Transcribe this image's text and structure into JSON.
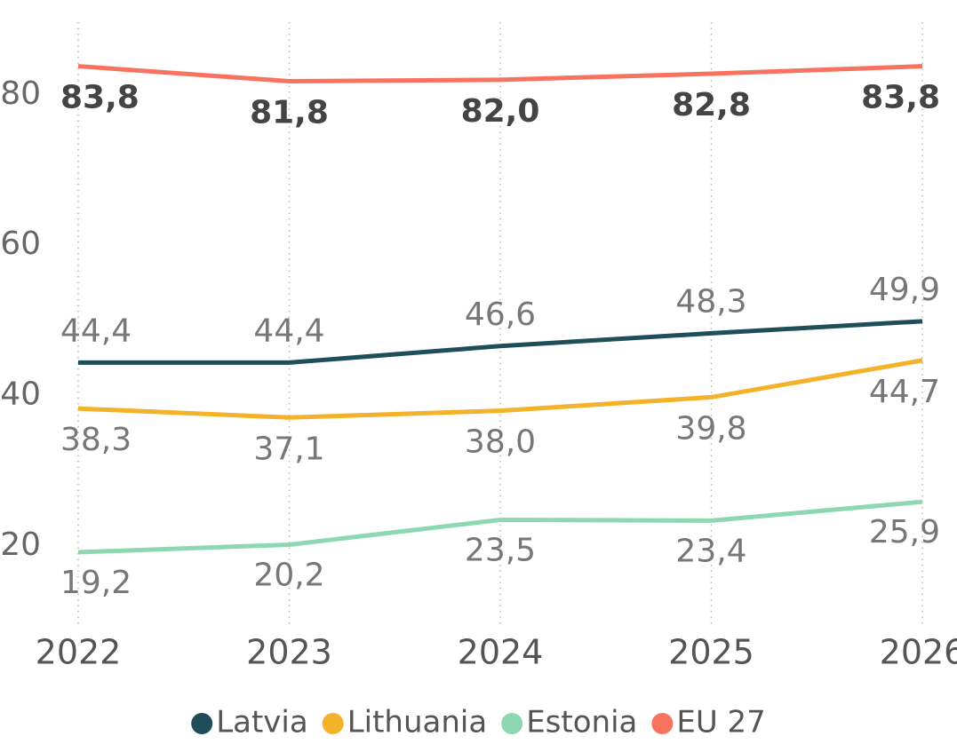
{
  "chart_data": {
    "type": "line",
    "categories": [
      "2022",
      "2023",
      "2024",
      "2025",
      "2026"
    ],
    "series": [
      {
        "name": "Latvia",
        "color": "#1f4e5a",
        "values": [
          44.4,
          44.4,
          46.6,
          48.3,
          49.9
        ],
        "value_labels": [
          "44,4",
          "44,4",
          "46,6",
          "48,3",
          "49,9"
        ]
      },
      {
        "name": "Lithuania",
        "color": "#f4b12a",
        "values": [
          38.3,
          37.1,
          38.0,
          39.8,
          44.7
        ],
        "value_labels": [
          "38,3",
          "37,1",
          "38,0",
          "39,8",
          "44,7"
        ]
      },
      {
        "name": "Estonia",
        "color": "#8dd8b0",
        "values": [
          19.2,
          20.2,
          23.5,
          23.4,
          25.9
        ],
        "value_labels": [
          "19,2",
          "20,2",
          "23,5",
          "23,4",
          "25,9"
        ]
      },
      {
        "name": "EU 27",
        "color": "#f7725f",
        "values": [
          83.8,
          81.8,
          82.0,
          82.8,
          83.8
        ],
        "value_labels": [
          "83,8",
          "81,8",
          "82,0",
          "82,8",
          "83,8"
        ]
      }
    ],
    "ylim": [
      9.4,
      92.6
    ],
    "yticks": [
      20,
      40,
      60,
      80
    ],
    "legend": "bottom"
  }
}
